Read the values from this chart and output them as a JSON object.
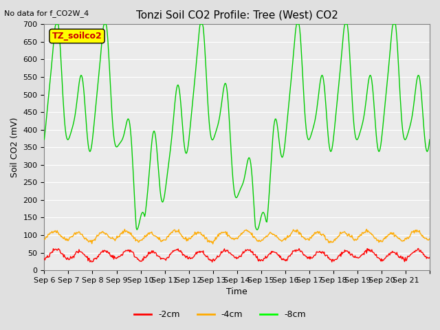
{
  "title": "Tonzi Soil CO2 Profile: Tree (West) CO2",
  "no_data_label": "No data for f_CO2W_4",
  "ylabel": "Soil CO2 (mV)",
  "xlabel": "Time",
  "group_label": "TZ_soilco2",
  "ylim": [
    0,
    700
  ],
  "yticks": [
    0,
    50,
    100,
    150,
    200,
    250,
    300,
    350,
    400,
    450,
    500,
    550,
    600,
    650,
    700
  ],
  "xtick_positions": [
    0,
    1,
    2,
    3,
    4,
    5,
    6,
    7,
    8,
    9,
    10,
    11,
    12,
    13,
    14,
    15,
    16
  ],
  "xtick_labels": [
    "Sep 6",
    "Sep 7",
    "Sep 8",
    "Sep 9",
    "Sep 10",
    "Sep 11",
    "Sep 12",
    "Sep 13",
    "Sep 14",
    "Sep 15",
    "Sep 16",
    "Sep 17",
    "Sep 18",
    "Sep 19",
    "Sep 20",
    "Sep 21",
    ""
  ],
  "legend_labels": [
    "-2cm",
    "-4cm",
    "-8cm"
  ],
  "legend_colors": [
    "#ff0000",
    "#ffaa00",
    "#00ff00"
  ],
  "line_colors": {
    "neg2cm": "#ff0000",
    "neg4cm": "#ffaa00",
    "neg8cm": "#00cc00"
  },
  "background_color": "#e0e0e0",
  "plot_bg_color": "#ebebeb",
  "seed": 42
}
